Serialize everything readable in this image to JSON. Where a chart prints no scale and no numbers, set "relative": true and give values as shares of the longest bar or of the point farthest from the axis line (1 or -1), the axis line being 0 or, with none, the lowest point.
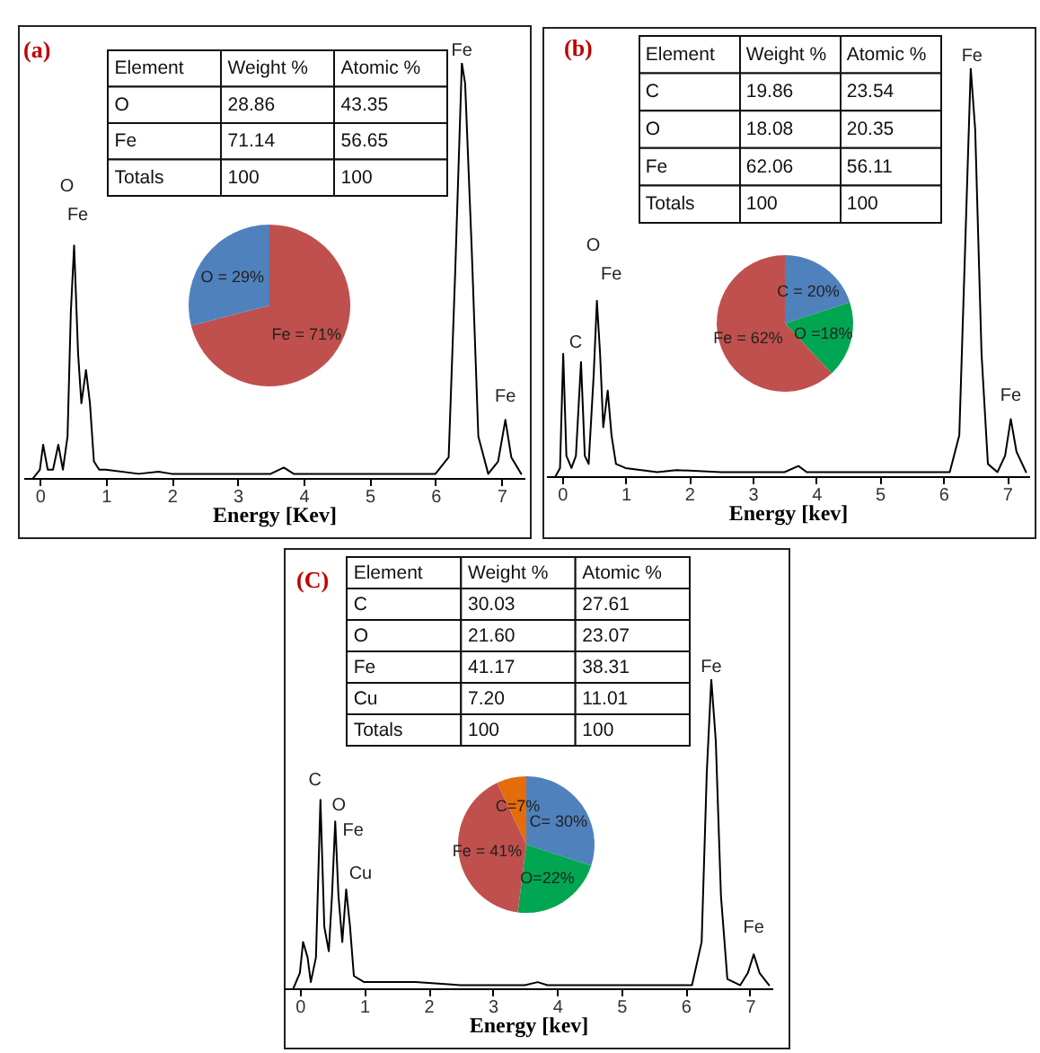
{
  "chart_data": [
    {
      "type": "line",
      "title": "(a)",
      "xlabel": "Energy [Kev]",
      "relative": true,
      "xlim": [
        -0.25,
        7.35
      ],
      "xticks": [
        0,
        1,
        2,
        3,
        4,
        5,
        6,
        7
      ],
      "tick_labels": "x",
      "series": [
        {
          "color": "#000000",
          "x": [
            -0.1,
            0.0,
            0.05,
            0.12,
            0.2,
            0.28,
            0.35,
            0.42,
            0.47,
            0.52,
            0.58,
            0.63,
            0.7,
            0.76,
            0.82,
            0.9,
            1.0,
            1.5,
            1.8,
            2.0,
            2.7,
            3.5,
            3.7,
            3.85,
            5.0,
            6.0,
            6.2,
            6.3,
            6.4,
            6.45,
            6.55,
            6.65,
            6.8,
            6.95,
            7.06,
            7.15,
            7.3
          ],
          "values": [
            0,
            0.02,
            0.08,
            0.02,
            0.02,
            0.08,
            0.02,
            0.1,
            0.4,
            0.56,
            0.3,
            0.18,
            0.26,
            0.18,
            0.04,
            0.02,
            0.02,
            0.01,
            0.015,
            0.01,
            0.01,
            0.01,
            0.025,
            0.01,
            0.01,
            0.01,
            0.05,
            0.5,
            1.0,
            0.95,
            0.55,
            0.1,
            0.01,
            0.04,
            0.14,
            0.05,
            0.01
          ]
        }
      ],
      "annotations": [
        {
          "text": "Fe",
          "x": 6.4,
          "y": 1.0
        },
        {
          "text": "O",
          "x": 0.52,
          "y": 0.56
        },
        {
          "text": "Fe",
          "x": 0.52,
          "y": 0.56
        },
        {
          "text": "Fe",
          "x": 7.06,
          "y": 0.14
        }
      ]
    },
    {
      "type": "other",
      "xlabel": "Element",
      "categories": [
        "O",
        "Fe",
        "Totals"
      ],
      "series": [
        {
          "name": "Weight %",
          "values": [
            28.86,
            71.14,
            100
          ],
          "value_labels": [
            "28.86",
            "71.14",
            "100"
          ]
        },
        {
          "name": "Atomic %",
          "values": [
            43.35,
            56.65,
            100
          ],
          "value_labels": [
            "43.35",
            "56.65",
            "100"
          ]
        }
      ]
    },
    {
      "type": "pie",
      "categories": [
        "Fe = 71%",
        "O = 29%"
      ],
      "values": [
        71,
        29
      ],
      "colors": [
        "#c0504d",
        "#4f81bd"
      ]
    },
    {
      "type": "line",
      "title": "(b)",
      "xlabel": "Energy [kev]",
      "relative": true,
      "xlim": [
        -0.25,
        7.35
      ],
      "xticks": [
        0,
        1,
        2,
        3,
        4,
        5,
        6,
        7
      ],
      "tick_labels": "x",
      "series": [
        {
          "color": "#000000",
          "x": [
            -0.1,
            -0.03,
            0.02,
            0.07,
            0.15,
            0.22,
            0.3,
            0.36,
            0.42,
            0.5,
            0.55,
            0.6,
            0.65,
            0.72,
            0.78,
            0.85,
            1.0,
            1.5,
            1.8,
            2.5,
            3.5,
            3.72,
            3.85,
            5.0,
            6.1,
            6.25,
            6.35,
            6.43,
            6.5,
            6.6,
            6.7,
            6.85,
            6.97,
            7.06,
            7.15,
            7.3
          ],
          "values": [
            0,
            0.02,
            0.3,
            0.05,
            0.02,
            0.05,
            0.28,
            0.05,
            0.03,
            0.25,
            0.43,
            0.3,
            0.12,
            0.21,
            0.1,
            0.03,
            0.02,
            0.01,
            0.015,
            0.01,
            0.01,
            0.025,
            0.01,
            0.01,
            0.01,
            0.1,
            0.6,
            1.0,
            0.85,
            0.3,
            0.03,
            0.01,
            0.05,
            0.14,
            0.06,
            0.01
          ]
        }
      ],
      "annotations": [
        {
          "text": "Fe",
          "x": 6.45,
          "y": 1.0
        },
        {
          "text": "Fe",
          "x": 7.06,
          "y": 0.14
        },
        {
          "text": "O",
          "x": 0.55,
          "y": 0.43
        },
        {
          "text": "Fe",
          "x": 0.55,
          "y": 0.43
        },
        {
          "text": "C",
          "x": 0.3,
          "y": 0.28
        }
      ]
    },
    {
      "type": "other",
      "xlabel": "Element",
      "categories": [
        "C",
        "O",
        "Fe",
        "Totals"
      ],
      "series": [
        {
          "name": "Weight %",
          "values": [
            19.86,
            18.08,
            62.06,
            100
          ],
          "value_labels": [
            "19.86",
            "18.08",
            "62.06",
            "100"
          ]
        },
        {
          "name": "Atomic %",
          "values": [
            23.54,
            20.35,
            56.11,
            100
          ],
          "value_labels": [
            "23.54",
            "20.35",
            "56.11",
            "100"
          ]
        }
      ]
    },
    {
      "type": "pie",
      "categories": [
        "C = 20%",
        "O =18%",
        "Fe = 62%"
      ],
      "values": [
        20,
        18,
        62
      ],
      "colors": [
        "#4f81bd",
        "#00a651",
        "#c0504d"
      ]
    },
    {
      "type": "line",
      "title": "(C)",
      "xlabel": "Energy [kev]",
      "relative": true,
      "xlim": [
        -0.25,
        7.35
      ],
      "xticks": [
        0,
        1,
        2,
        3,
        4,
        5,
        6,
        7
      ],
      "tick_labels": "x",
      "series": [
        {
          "color": "#000000",
          "x": [
            -0.1,
            0.0,
            0.05,
            0.12,
            0.17,
            0.25,
            0.32,
            0.38,
            0.45,
            0.5,
            0.55,
            0.6,
            0.66,
            0.72,
            0.78,
            0.84,
            1.0,
            1.8,
            2.5,
            3.5,
            3.7,
            3.85,
            5.0,
            6.1,
            6.25,
            6.33,
            6.4,
            6.47,
            6.55,
            6.65,
            6.85,
            6.97,
            7.06,
            7.15,
            7.3
          ],
          "values": [
            0,
            0.05,
            0.15,
            0.1,
            0.02,
            0.1,
            0.61,
            0.2,
            0.12,
            0.3,
            0.54,
            0.3,
            0.15,
            0.32,
            0.2,
            0.04,
            0.02,
            0.02,
            0.01,
            0.01,
            0.02,
            0.01,
            0.01,
            0.01,
            0.15,
            0.7,
            1.0,
            0.8,
            0.3,
            0.03,
            0.01,
            0.05,
            0.11,
            0.05,
            0.01
          ]
        }
      ],
      "annotations": [
        {
          "text": "C",
          "x": 0.32,
          "y": 0.61
        },
        {
          "text": "O",
          "x": 0.55,
          "y": 0.54
        },
        {
          "text": "Fe",
          "x": 0.55,
          "y": 0.54
        },
        {
          "text": "Cu",
          "x": 0.72,
          "y": 0.32
        },
        {
          "text": "Fe",
          "x": 6.4,
          "y": 1.0
        },
        {
          "text": "Fe",
          "x": 7.06,
          "y": 0.11
        }
      ]
    },
    {
      "type": "other",
      "xlabel": "Element",
      "categories": [
        "C",
        "O",
        "Fe",
        "Cu",
        "Totals"
      ],
      "series": [
        {
          "name": "Weight %",
          "values": [
            30.03,
            21.6,
            41.17,
            7.2,
            100
          ],
          "value_labels": [
            "30.03",
            "21.60",
            "41.17",
            " 7.20",
            "100"
          ]
        },
        {
          "name": "Atomic %",
          "values": [
            27.61,
            23.07,
            38.31,
            11.01,
            100
          ],
          "value_labels": [
            "27.61",
            "23.07",
            "38.31",
            "11.01",
            "100"
          ]
        }
      ]
    },
    {
      "type": "pie",
      "categories": [
        "C= 30%",
        "O=22%",
        "Fe = 41%",
        "C=7%"
      ],
      "values": [
        30,
        22,
        41,
        7
      ],
      "colors": [
        "#4f81bd",
        "#00a651",
        "#c0504d",
        "#e46c0a"
      ]
    }
  ]
}
